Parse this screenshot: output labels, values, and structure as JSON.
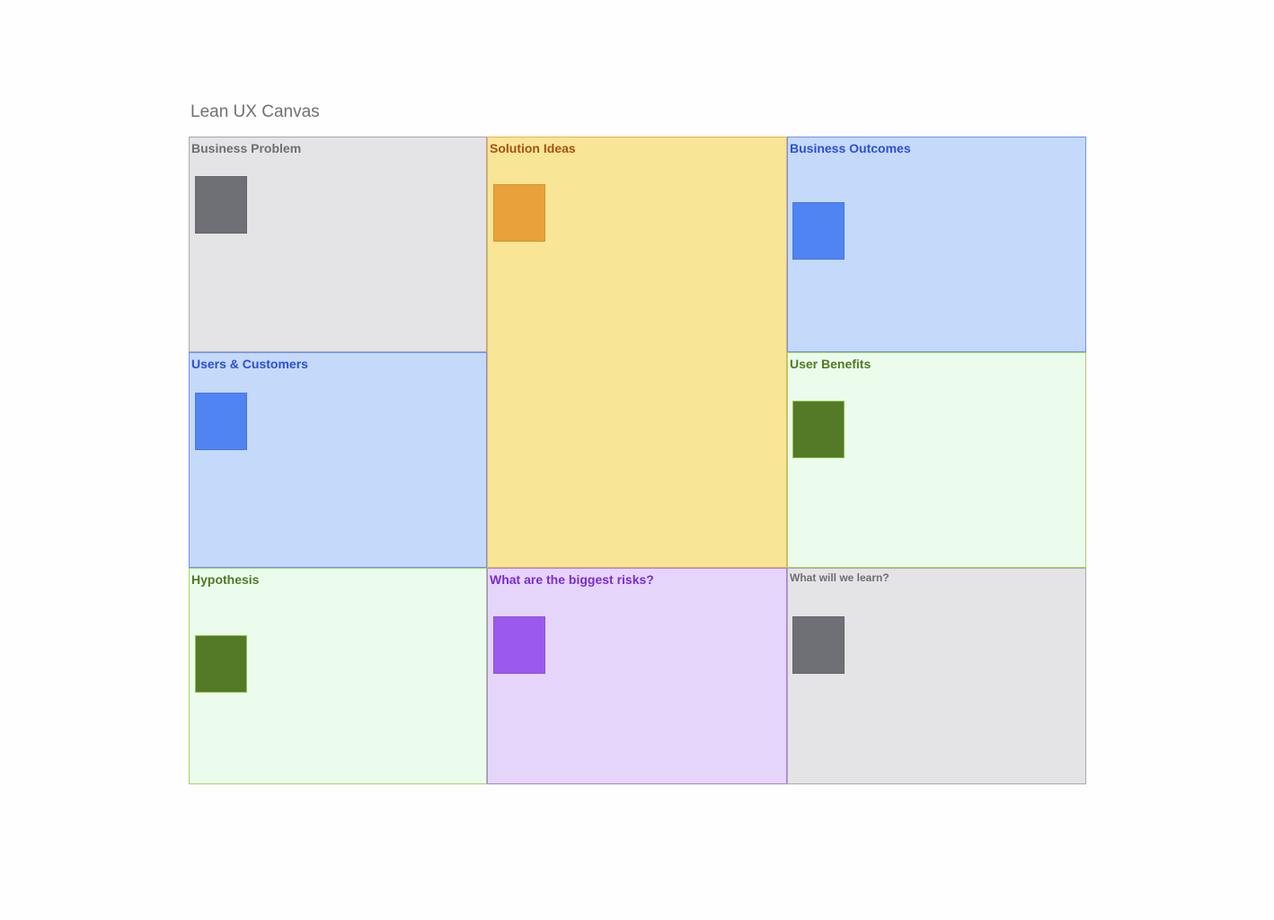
{
  "canvas": {
    "title": "Lean UX Canvas",
    "cells": [
      {
        "label": "Business Problem",
        "note_color": "#6f6f76"
      },
      {
        "label": "Solution Ideas",
        "note_color": "#e8a13b"
      },
      {
        "label": "Business Outcomes",
        "note_color": "#4f84f2"
      },
      {
        "label": "Users & Customers",
        "note_color": "#4f84f2"
      },
      {
        "label": "User Benefits",
        "note_color": "#547a27"
      },
      {
        "label": "Hypothesis",
        "note_color": "#547a27"
      },
      {
        "label": "What are the biggest risks?",
        "note_color": "#9b59ee"
      },
      {
        "label": "What will we learn?",
        "note_color": "#6f6f76"
      }
    ]
  }
}
